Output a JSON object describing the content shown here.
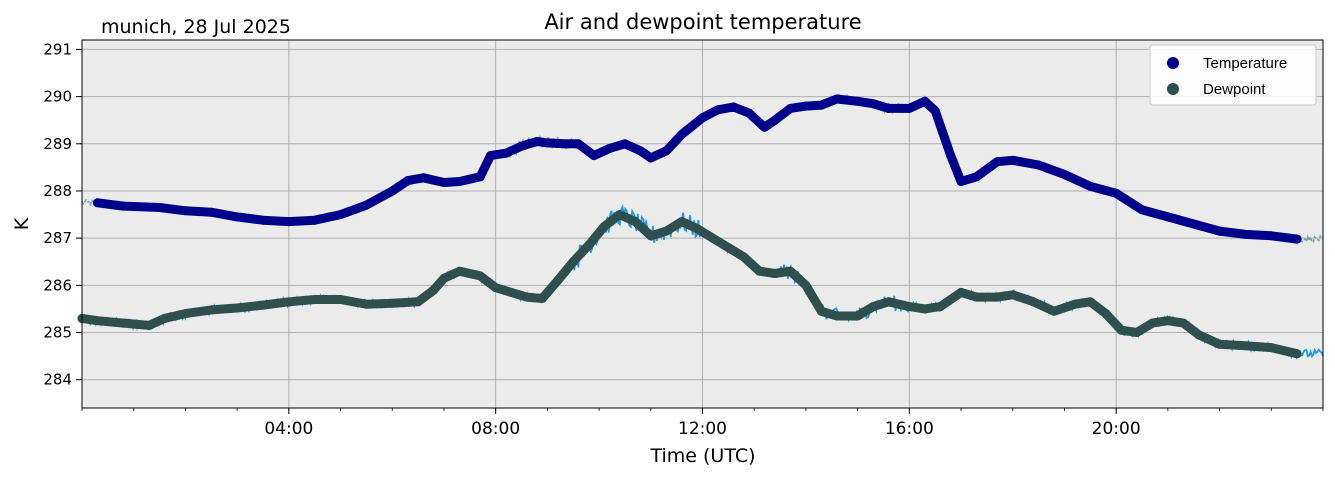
{
  "chart_data": {
    "type": "line",
    "title": "Air and dewpoint temperature",
    "subtitle": "munich, 28 Jul 2025",
    "xlabel": "Time (UTC)",
    "ylabel": "K",
    "xlim": [
      "00:00",
      "24:00"
    ],
    "ylim": [
      283.4,
      291.2
    ],
    "x_ticks": [
      "04:00",
      "08:00",
      "12:00",
      "16:00",
      "20:00"
    ],
    "y_ticks": [
      284,
      285,
      286,
      287,
      288,
      289,
      290,
      291
    ],
    "grid": true,
    "legend_position": "top-right",
    "x_unit": "hours",
    "series": [
      {
        "name": "Temperature",
        "color": "#00008b",
        "raw_color": "#6fa6a0",
        "x": [
          0.3,
          0.8,
          1.5,
          2.0,
          2.5,
          3.0,
          3.5,
          4.0,
          4.5,
          5.0,
          5.5,
          6.0,
          6.3,
          6.6,
          7.0,
          7.3,
          7.7,
          7.9,
          8.2,
          8.5,
          8.8,
          9.0,
          9.3,
          9.6,
          9.9,
          10.2,
          10.5,
          10.8,
          11.0,
          11.3,
          11.6,
          12.0,
          12.3,
          12.6,
          12.9,
          13.2,
          13.4,
          13.7,
          14.0,
          14.3,
          14.6,
          15.0,
          15.3,
          15.6,
          16.0,
          16.3,
          16.5,
          16.8,
          17.0,
          17.3,
          17.7,
          18.0,
          18.5,
          19.0,
          19.5,
          20.0,
          20.5,
          21.0,
          21.5,
          22.0,
          22.5,
          23.0,
          23.5
        ],
        "values": [
          287.75,
          287.68,
          287.65,
          287.58,
          287.55,
          287.45,
          287.38,
          287.35,
          287.38,
          287.5,
          287.7,
          288.0,
          288.22,
          288.28,
          288.18,
          288.2,
          288.3,
          288.75,
          288.8,
          288.95,
          289.05,
          289.02,
          289.0,
          289.0,
          288.75,
          288.9,
          289.0,
          288.85,
          288.7,
          288.85,
          289.2,
          289.55,
          289.72,
          289.78,
          289.65,
          289.35,
          289.5,
          289.75,
          289.8,
          289.82,
          289.95,
          289.9,
          289.85,
          289.75,
          289.75,
          289.9,
          289.7,
          288.75,
          288.2,
          288.3,
          288.62,
          288.65,
          288.55,
          288.35,
          288.1,
          287.95,
          287.6,
          287.45,
          287.3,
          287.15,
          287.08,
          287.05,
          286.98
        ]
      },
      {
        "name": "Dewpoint",
        "color": "#2f4f4f",
        "raw_color": "#1e9be6",
        "x": [
          0.0,
          0.3,
          0.8,
          1.3,
          1.6,
          2.0,
          2.5,
          3.0,
          3.5,
          4.0,
          4.5,
          5.0,
          5.5,
          6.0,
          6.5,
          6.8,
          7.0,
          7.3,
          7.7,
          8.0,
          8.3,
          8.6,
          8.9,
          9.2,
          9.5,
          9.8,
          10.1,
          10.4,
          10.7,
          11.0,
          11.3,
          11.6,
          11.9,
          12.2,
          12.5,
          12.8,
          13.1,
          13.4,
          13.7,
          14.0,
          14.3,
          14.6,
          15.0,
          15.3,
          15.6,
          16.0,
          16.3,
          16.6,
          17.0,
          17.3,
          17.7,
          18.0,
          18.4,
          18.8,
          19.2,
          19.5,
          19.8,
          20.1,
          20.4,
          20.7,
          21.0,
          21.3,
          21.6,
          22.0,
          22.5,
          23.0,
          23.5
        ],
        "values": [
          285.3,
          285.25,
          285.2,
          285.15,
          285.3,
          285.4,
          285.48,
          285.52,
          285.58,
          285.65,
          285.7,
          285.7,
          285.6,
          285.62,
          285.65,
          285.9,
          286.15,
          286.3,
          286.2,
          285.95,
          285.85,
          285.75,
          285.72,
          286.1,
          286.5,
          286.85,
          287.25,
          287.5,
          287.35,
          287.05,
          287.15,
          287.35,
          287.2,
          287.0,
          286.8,
          286.6,
          286.3,
          286.25,
          286.3,
          286.0,
          285.45,
          285.35,
          285.35,
          285.55,
          285.65,
          285.55,
          285.5,
          285.55,
          285.85,
          285.75,
          285.75,
          285.8,
          285.65,
          285.45,
          285.6,
          285.65,
          285.4,
          285.05,
          285.0,
          285.2,
          285.25,
          285.2,
          284.95,
          284.75,
          284.72,
          284.68,
          284.55
        ]
      }
    ]
  }
}
